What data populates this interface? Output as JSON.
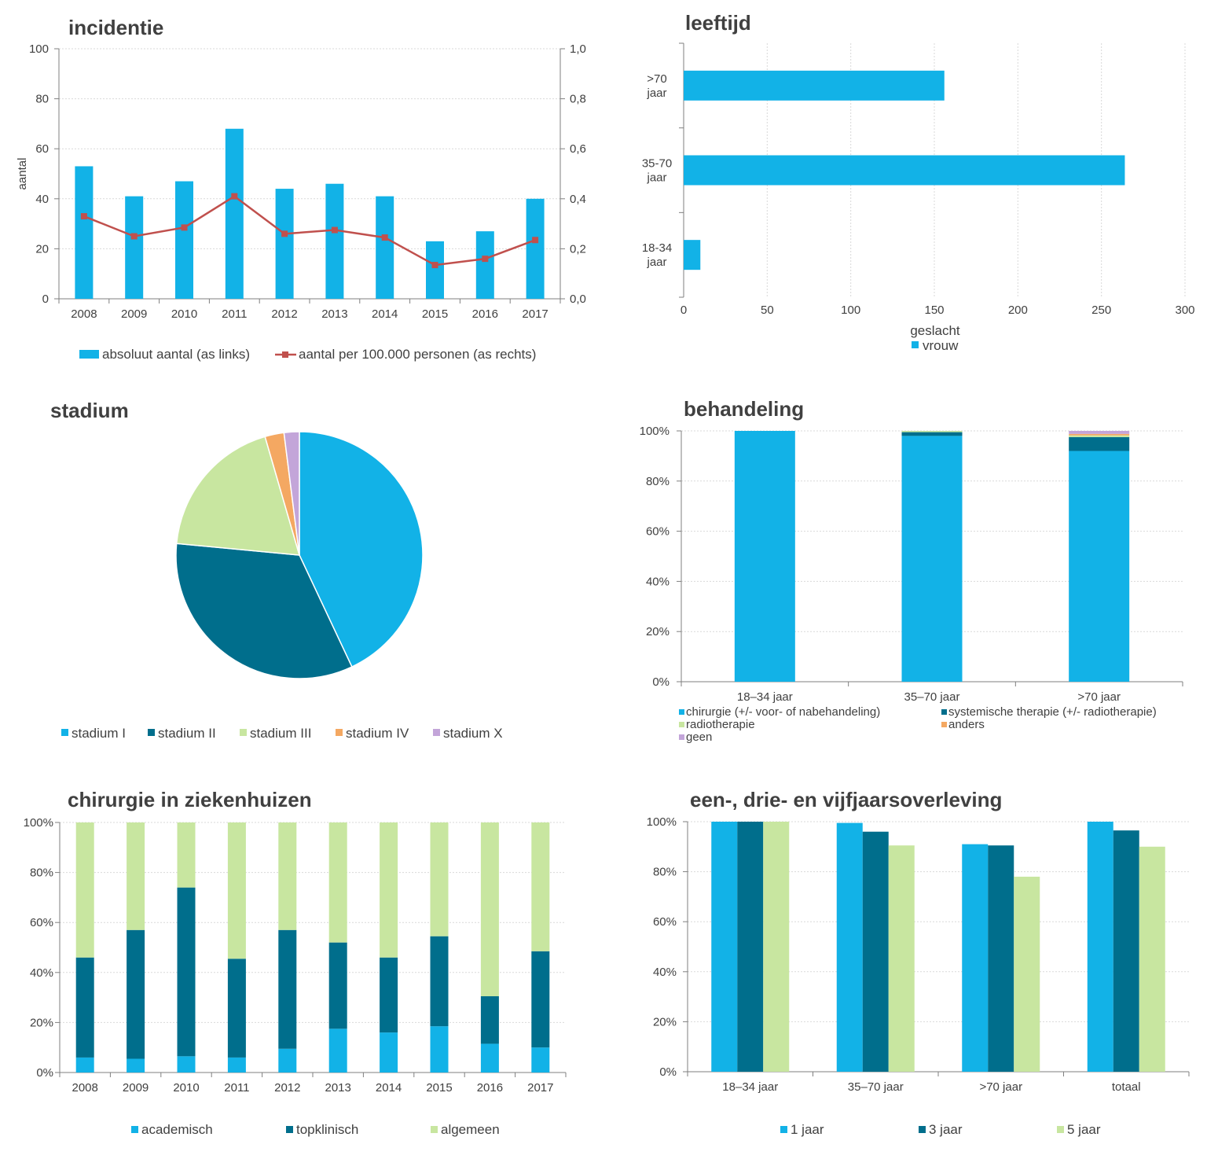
{
  "colors": {
    "light_blue": "#12b2e7",
    "dark_teal": "#006e8c",
    "light_green": "#c8e6a0",
    "orange": "#f4a862",
    "lilac": "#c3a5d9",
    "line_red": "#c0504d"
  },
  "chart_data": [
    {
      "id": "incidentie",
      "type": "bar",
      "title": "incidentie",
      "categories": [
        "2008",
        "2009",
        "2010",
        "2011",
        "2012",
        "2013",
        "2014",
        "2015",
        "2016",
        "2017"
      ],
      "ylabel": "aantal",
      "ylim": [
        0,
        100
      ],
      "yticks": [
        "0",
        "20",
        "40",
        "60",
        "80",
        "100"
      ],
      "y2lim": [
        0,
        1
      ],
      "y2ticks": [
        "0,0",
        "0,2",
        "0,4",
        "0,6",
        "0,8",
        "1,0"
      ],
      "series": [
        {
          "name": "absoluut aantal (as links)",
          "type": "bar",
          "axis": "left",
          "values": [
            53,
            41,
            47,
            68,
            44,
            46,
            41,
            23,
            27,
            40
          ]
        },
        {
          "name": "aantal per 100.000 personen (as rechts)",
          "type": "line",
          "axis": "right",
          "values": [
            0.33,
            0.25,
            0.285,
            0.41,
            0.26,
            0.275,
            0.245,
            0.135,
            0.16,
            0.235
          ]
        }
      ],
      "legend": "bottom"
    },
    {
      "id": "leeftijd",
      "type": "bar",
      "orientation": "horizontal",
      "title": "leeftijd",
      "categories": [
        ">70 jaar",
        "35-70 jaar",
        "18-34 jaar"
      ],
      "category_lines": [
        [
          ">70",
          "jaar"
        ],
        [
          "35-70",
          "jaar"
        ],
        [
          "18-34",
          "jaar"
        ]
      ],
      "xlim": [
        0,
        300
      ],
      "xticks": [
        "0",
        "50",
        "100",
        "150",
        "200",
        "250",
        "300"
      ],
      "series": [
        {
          "name": "vrouw",
          "values": [
            156,
            264,
            10
          ]
        }
      ],
      "legend_title": "geslacht",
      "legend": "bottom"
    },
    {
      "id": "stadium",
      "type": "pie",
      "title": "stadium",
      "labels": [
        "stadium I",
        "stadium II",
        "stadium III",
        "stadium IV",
        "stadium X"
      ],
      "values": [
        43.0,
        33.5,
        19.0,
        2.5,
        2.0
      ],
      "legend": "bottom"
    },
    {
      "id": "behandeling",
      "type": "bar",
      "stacked": true,
      "title": "behandeling",
      "categories": [
        "18–34 jaar",
        "35–70 jaar",
        ">70 jaar"
      ],
      "ylim": [
        0,
        100
      ],
      "yticks": [
        "0%",
        "20%",
        "40%",
        "60%",
        "80%",
        "100%"
      ],
      "series": [
        {
          "name": "chirurgie (+/- voor- of nabehandeling)",
          "values": [
            100,
            98,
            92
          ]
        },
        {
          "name": "systemische therapie (+/- radiotherapie)",
          "values": [
            0,
            1.5,
            5.5
          ]
        },
        {
          "name": "radiotherapie",
          "values": [
            0,
            0.5,
            0.7
          ]
        },
        {
          "name": "anders",
          "values": [
            0,
            0,
            0.6
          ]
        },
        {
          "name": "geen",
          "values": [
            0,
            0,
            1.2
          ]
        }
      ],
      "legend": "bottom"
    },
    {
      "id": "chirurgie",
      "type": "bar",
      "stacked": true,
      "title": "chirurgie in ziekenhuizen",
      "categories": [
        "2008",
        "2009",
        "2010",
        "2011",
        "2012",
        "2013",
        "2014",
        "2015",
        "2016",
        "2017"
      ],
      "ylim": [
        0,
        100
      ],
      "yticks": [
        "0%",
        "20%",
        "40%",
        "60%",
        "80%",
        "100%"
      ],
      "series": [
        {
          "name": "academisch",
          "values": [
            6,
            5.5,
            6.5,
            6,
            9.5,
            17.5,
            16,
            18.5,
            11.5,
            10
          ]
        },
        {
          "name": "topklinisch",
          "values": [
            40,
            51.5,
            67.5,
            39.5,
            47.5,
            34.5,
            30,
            36,
            19,
            38.5
          ]
        },
        {
          "name": "algemeen",
          "values": [
            54,
            43,
            26,
            54.5,
            43,
            48,
            54,
            45.5,
            69.5,
            51.5
          ]
        }
      ],
      "legend": "bottom"
    },
    {
      "id": "overleving",
      "type": "bar",
      "title": "een-, drie- en vijfjaarsoverleving",
      "categories": [
        "18–34 jaar",
        "35–70 jaar",
        ">70 jaar",
        "totaal"
      ],
      "ylim": [
        0,
        100
      ],
      "yticks": [
        "0%",
        "20%",
        "40%",
        "60%",
        "80%",
        "100%"
      ],
      "series": [
        {
          "name": "1 jaar",
          "values": [
            100,
            99.5,
            91,
            100
          ]
        },
        {
          "name": "3 jaar",
          "values": [
            100,
            96,
            90.5,
            96.5
          ]
        },
        {
          "name": "5 jaar",
          "values": [
            100,
            90.5,
            78,
            90
          ]
        }
      ],
      "legend": "bottom"
    }
  ]
}
